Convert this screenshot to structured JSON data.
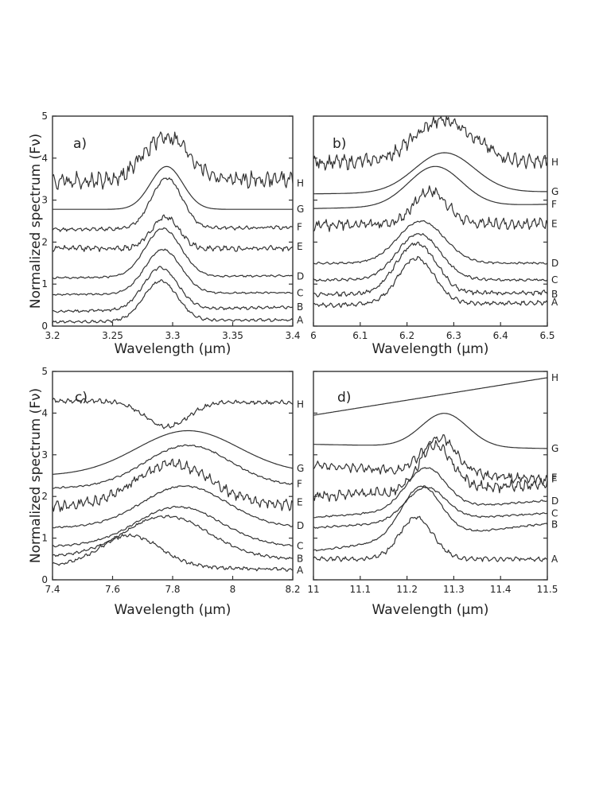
{
  "chart_data": [
    {
      "type": "line",
      "panel_label": "a)",
      "xlabel": "Wavelength (μm)",
      "ylabel": "Normalized spectrum (Fν)",
      "xlim": [
        3.2,
        3.4
      ],
      "ylim": [
        0,
        5
      ],
      "xticks": [
        3.2,
        3.25,
        3.3,
        3.35,
        3.4
      ],
      "xtick_labels": [
        "3.2",
        "3.25",
        "3.3",
        "3.35",
        "3.4"
      ],
      "yticks": [
        0,
        1,
        2,
        3,
        4,
        5
      ],
      "ytick_labels": [
        "0",
        "1",
        "2",
        "3",
        "4",
        "5"
      ],
      "series": [
        {
          "name": "A",
          "baseline": 0.1,
          "peak_x": 3.29,
          "peak_width": 0.02,
          "amplitude": 0.95,
          "noise": 0.03,
          "offset_right": 0.15,
          "points": 0
        },
        {
          "name": "B",
          "baseline": 0.35,
          "peak_x": 3.29,
          "peak_width": 0.02,
          "amplitude": 1.0,
          "noise": 0.03,
          "offset_right": 0.45,
          "points": 0
        },
        {
          "name": "C",
          "baseline": 0.75,
          "peak_x": 3.292,
          "peak_width": 0.021,
          "amplitude": 1.05,
          "noise": 0.02,
          "offset_right": 0.8,
          "points": 0
        },
        {
          "name": "D",
          "baseline": 1.15,
          "peak_x": 3.292,
          "peak_width": 0.021,
          "amplitude": 1.15,
          "noise": 0.02,
          "offset_right": 1.2,
          "points": 0
        },
        {
          "name": "E",
          "baseline": 1.85,
          "peak_x": 3.294,
          "peak_width": 0.016,
          "amplitude": 0.75,
          "noise": 0.06,
          "offset_right": 1.85,
          "points": 0
        },
        {
          "name": "F",
          "baseline": 2.3,
          "peak_x": 3.295,
          "peak_width": 0.018,
          "amplitude": 1.2,
          "noise": 0.04,
          "offset_right": 2.35,
          "points": 0
        },
        {
          "name": "G",
          "baseline": 2.78,
          "peak_x": 3.295,
          "peak_width": 0.019,
          "amplitude": 1.02,
          "noise": 0.0,
          "offset_right": 2.78,
          "points": 0
        },
        {
          "name": "H",
          "baseline": 3.45,
          "peak_x": 3.295,
          "peak_width": 0.026,
          "amplitude": 1.05,
          "noise": 0.18,
          "offset_right": 3.5,
          "points": 0
        }
      ]
    },
    {
      "type": "line",
      "panel_label": "b)",
      "xlabel": "Wavelength (μm)",
      "ylabel": "",
      "xlim": [
        6.0,
        6.5
      ],
      "ylim": [
        0,
        5
      ],
      "xticks": [
        6.0,
        6.1,
        6.2,
        6.3,
        6.4,
        6.5
      ],
      "xtick_labels": [
        "6",
        "6.1",
        "6.2",
        "6.3",
        "6.4",
        "6.5"
      ],
      "yticks": [
        0,
        1,
        2,
        3,
        4,
        5
      ],
      "ytick_labels": [
        "",
        "",
        "",
        "",
        "",
        ""
      ],
      "series": [
        {
          "name": "A",
          "baseline": 0.5,
          "peak_x": 6.22,
          "peak_width": 0.055,
          "amplitude": 1.1,
          "noise": 0.05,
          "offset_right": 0.55,
          "points": 0
        },
        {
          "name": "B",
          "baseline": 0.75,
          "peak_x": 6.22,
          "peak_width": 0.06,
          "amplitude": 1.2,
          "noise": 0.05,
          "offset_right": 0.8,
          "points": 0
        },
        {
          "name": "C",
          "baseline": 1.1,
          "peak_x": 6.225,
          "peak_width": 0.065,
          "amplitude": 1.1,
          "noise": 0.03,
          "offset_right": 1.1,
          "points": 0
        },
        {
          "name": "D",
          "baseline": 1.5,
          "peak_x": 6.23,
          "peak_width": 0.07,
          "amplitude": 1.0,
          "noise": 0.02,
          "offset_right": 1.5,
          "points": 0
        },
        {
          "name": "E",
          "baseline": 2.4,
          "peak_x": 6.25,
          "peak_width": 0.05,
          "amplitude": 0.8,
          "noise": 0.12,
          "offset_right": 2.45,
          "points": 0
        },
        {
          "name": "F",
          "baseline": 2.8,
          "peak_x": 6.26,
          "peak_width": 0.08,
          "amplitude": 0.95,
          "noise": 0.0,
          "offset_right": 2.9,
          "points": 0
        },
        {
          "name": "G",
          "baseline": 3.15,
          "peak_x": 6.28,
          "peak_width": 0.09,
          "amplitude": 0.95,
          "noise": 0.0,
          "offset_right": 3.2,
          "points": 0
        },
        {
          "name": "H",
          "baseline": 3.9,
          "peak_x": 6.28,
          "peak_width": 0.09,
          "amplitude": 1.0,
          "noise": 0.15,
          "offset_right": 3.9,
          "points": 0
        }
      ]
    },
    {
      "type": "line",
      "panel_label": "c)",
      "xlabel": "Wavelength (μm)",
      "ylabel": "Normalized spectrum (Fν)",
      "xlim": [
        7.4,
        8.2
      ],
      "ylim": [
        0,
        5
      ],
      "xticks": [
        7.4,
        7.6,
        7.8,
        8.0,
        8.2
      ],
      "xtick_labels": [
        "7.4",
        "7.6",
        "7.8",
        "8",
        "8.2"
      ],
      "yticks": [
        0,
        1,
        2,
        3,
        4,
        5
      ],
      "ytick_labels": [
        "0",
        "1",
        "2",
        "3",
        "4",
        "5"
      ],
      "series": [
        {
          "name": "A",
          "baseline": 0.35,
          "peak_x": 7.66,
          "peak_width": 0.14,
          "amplitude": 0.75,
          "noise": 0.04,
          "offset_right": 0.25,
          "points": 0
        },
        {
          "name": "B",
          "baseline": 0.55,
          "peak_x": 7.78,
          "peak_width": 0.2,
          "amplitude": 1.0,
          "noise": 0.03,
          "offset_right": 0.5,
          "points": 0
        },
        {
          "name": "C",
          "baseline": 0.8,
          "peak_x": 7.82,
          "peak_width": 0.2,
          "amplitude": 0.95,
          "noise": 0.02,
          "offset_right": 0.8,
          "points": 0
        },
        {
          "name": "D",
          "baseline": 1.25,
          "peak_x": 7.84,
          "peak_width": 0.2,
          "amplitude": 1.0,
          "noise": 0.02,
          "offset_right": 1.25,
          "points": 0
        },
        {
          "name": "E",
          "baseline": 1.75,
          "peak_x": 7.8,
          "peak_width": 0.18,
          "amplitude": 1.0,
          "noise": 0.12,
          "offset_right": 1.8,
          "points": 0
        },
        {
          "name": "F",
          "baseline": 2.2,
          "peak_x": 7.85,
          "peak_width": 0.2,
          "amplitude": 1.0,
          "noise": 0.02,
          "offset_right": 2.25,
          "points": 0
        },
        {
          "name": "G",
          "baseline": 2.5,
          "peak_x": 7.85,
          "peak_width": 0.24,
          "amplitude": 1.05,
          "noise": 0.0,
          "offset_right": 2.55,
          "points": 0
        },
        {
          "name": "H",
          "baseline": 4.3,
          "peak_x": 7.78,
          "peak_width": 0.1,
          "amplitude": -0.6,
          "noise": 0.05,
          "offset_right": 4.25,
          "points": 0
        }
      ]
    },
    {
      "type": "line",
      "panel_label": "d)",
      "xlabel": "Wavelength (μm)",
      "ylabel": "",
      "xlim": [
        11.0,
        11.5
      ],
      "ylim": [
        0,
        5
      ],
      "xticks": [
        11.0,
        11.1,
        11.2,
        11.3,
        11.4,
        11.5
      ],
      "xtick_labels": [
        "11",
        "11.1",
        "11.2",
        "11.3",
        "11.4",
        "11.5"
      ],
      "yticks": [
        0,
        1,
        2,
        3,
        4,
        5
      ],
      "ytick_labels": [
        "",
        "",
        "",
        "",
        "",
        ""
      ],
      "series": [
        {
          "name": "A",
          "baseline": 0.5,
          "peak_x": 11.22,
          "peak_width": 0.05,
          "amplitude": 1.0,
          "noise": 0.05,
          "offset_right": 0.5,
          "points": 0
        },
        {
          "name": "B",
          "baseline": 0.7,
          "peak_x": 11.23,
          "peak_width": 0.06,
          "amplitude": 1.25,
          "noise": 0.02,
          "offset_right": 1.35,
          "points": 0
        },
        {
          "name": "C",
          "baseline": 1.25,
          "peak_x": 11.24,
          "peak_width": 0.06,
          "amplitude": 0.8,
          "noise": 0.02,
          "offset_right": 1.6,
          "points": 0
        },
        {
          "name": "D",
          "baseline": 1.5,
          "peak_x": 11.24,
          "peak_width": 0.06,
          "amplitude": 1.0,
          "noise": 0.02,
          "offset_right": 1.9,
          "points": 0
        },
        {
          "name": "F",
          "baseline": 2.0,
          "peak_x": 11.26,
          "peak_width": 0.05,
          "amplitude": 1.1,
          "noise": 0.12,
          "offset_right": 2.3,
          "points": 0
        },
        {
          "name": "E",
          "baseline": 2.75,
          "peak_x": 11.27,
          "peak_width": 0.05,
          "amplitude": 0.85,
          "noise": 0.1,
          "offset_right": 2.4,
          "points": 0
        },
        {
          "name": "G",
          "baseline": 3.25,
          "peak_x": 11.28,
          "peak_width": 0.07,
          "amplitude": 0.8,
          "noise": 0.0,
          "offset_right": 3.15,
          "points": 0
        },
        {
          "name": "H",
          "baseline": 3.95,
          "peak_x": 11.3,
          "peak_width": 0.2,
          "amplitude": 0.0,
          "noise": 0.0,
          "offset_right": 4.85,
          "points": 0
        }
      ]
    }
  ]
}
